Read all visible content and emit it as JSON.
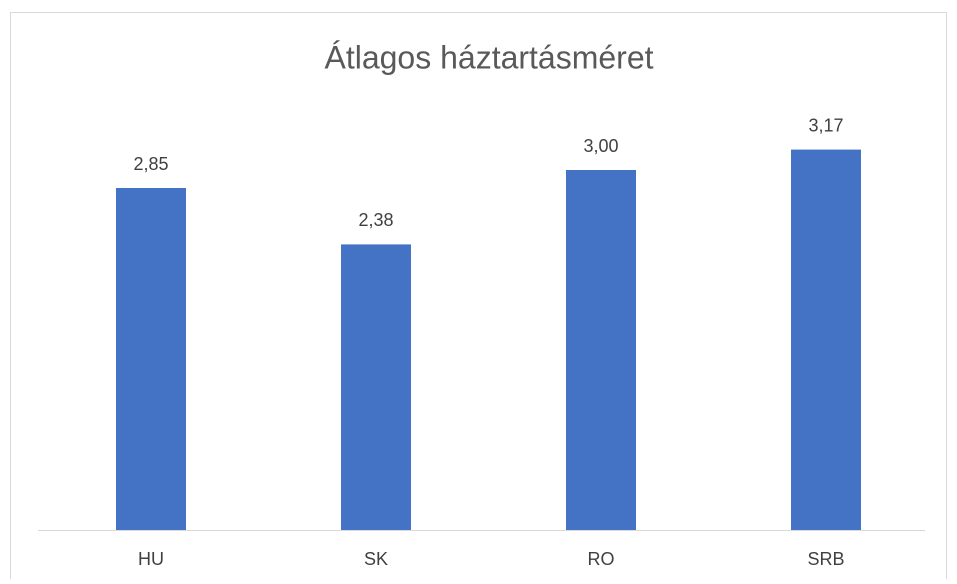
{
  "chart_data": {
    "type": "bar",
    "title": "Átlagos háztartásméret",
    "categories": [
      "HU",
      "SK",
      "RO",
      "SRB"
    ],
    "values": [
      2.85,
      2.38,
      3.0,
      3.17
    ],
    "value_labels": [
      "2,85",
      "2,38",
      "3,00",
      "3,17"
    ],
    "color": "#4472c4",
    "ylim": [
      0,
      3.5
    ]
  }
}
